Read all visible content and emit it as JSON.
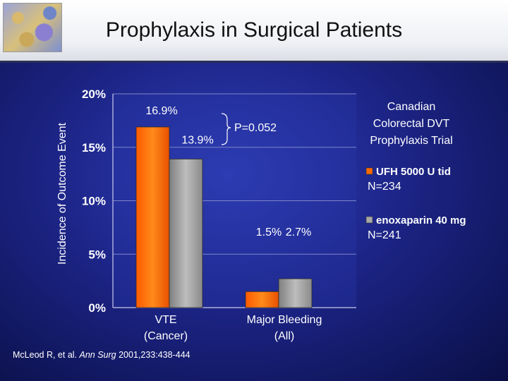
{
  "title": "Prophylaxis in Surgical Patients",
  "citation": {
    "authors": "McLeod R, et al.",
    "journal": "Ann Surg",
    "rest": "2001,233:438-444"
  },
  "colors": {
    "ufh": "#ff6a00",
    "enox": "#9a9a9a",
    "background": "#1c2486"
  },
  "chart_data": {
    "type": "bar",
    "title": "Canadian Colorectal DVT Prophylaxis Trial",
    "title_lines": [
      "Canadian",
      "Colorectal DVT",
      "Prophylaxis Trial"
    ],
    "ylabel": "Incidence of Outcome Event",
    "ylim": [
      0,
      20
    ],
    "yticks": [
      "0%",
      "5%",
      "10%",
      "15%",
      "20%"
    ],
    "grid": true,
    "categories": [
      {
        "lines": [
          "VTE",
          "(Cancer)"
        ]
      },
      {
        "lines": [
          "Major Bleeding",
          "(All)"
        ]
      }
    ],
    "series": [
      {
        "name": "UFH 5000 U tid",
        "n": "N=234",
        "values": [
          16.9,
          1.5
        ],
        "labels": [
          "16.9%",
          "1.5%"
        ]
      },
      {
        "name": "enoxaparin 40 mg",
        "n": "N=241",
        "values": [
          13.9,
          2.7
        ],
        "labels": [
          "13.9%",
          "2.7%"
        ]
      }
    ],
    "annotation": "P=0.052",
    "legend_position": "right"
  }
}
